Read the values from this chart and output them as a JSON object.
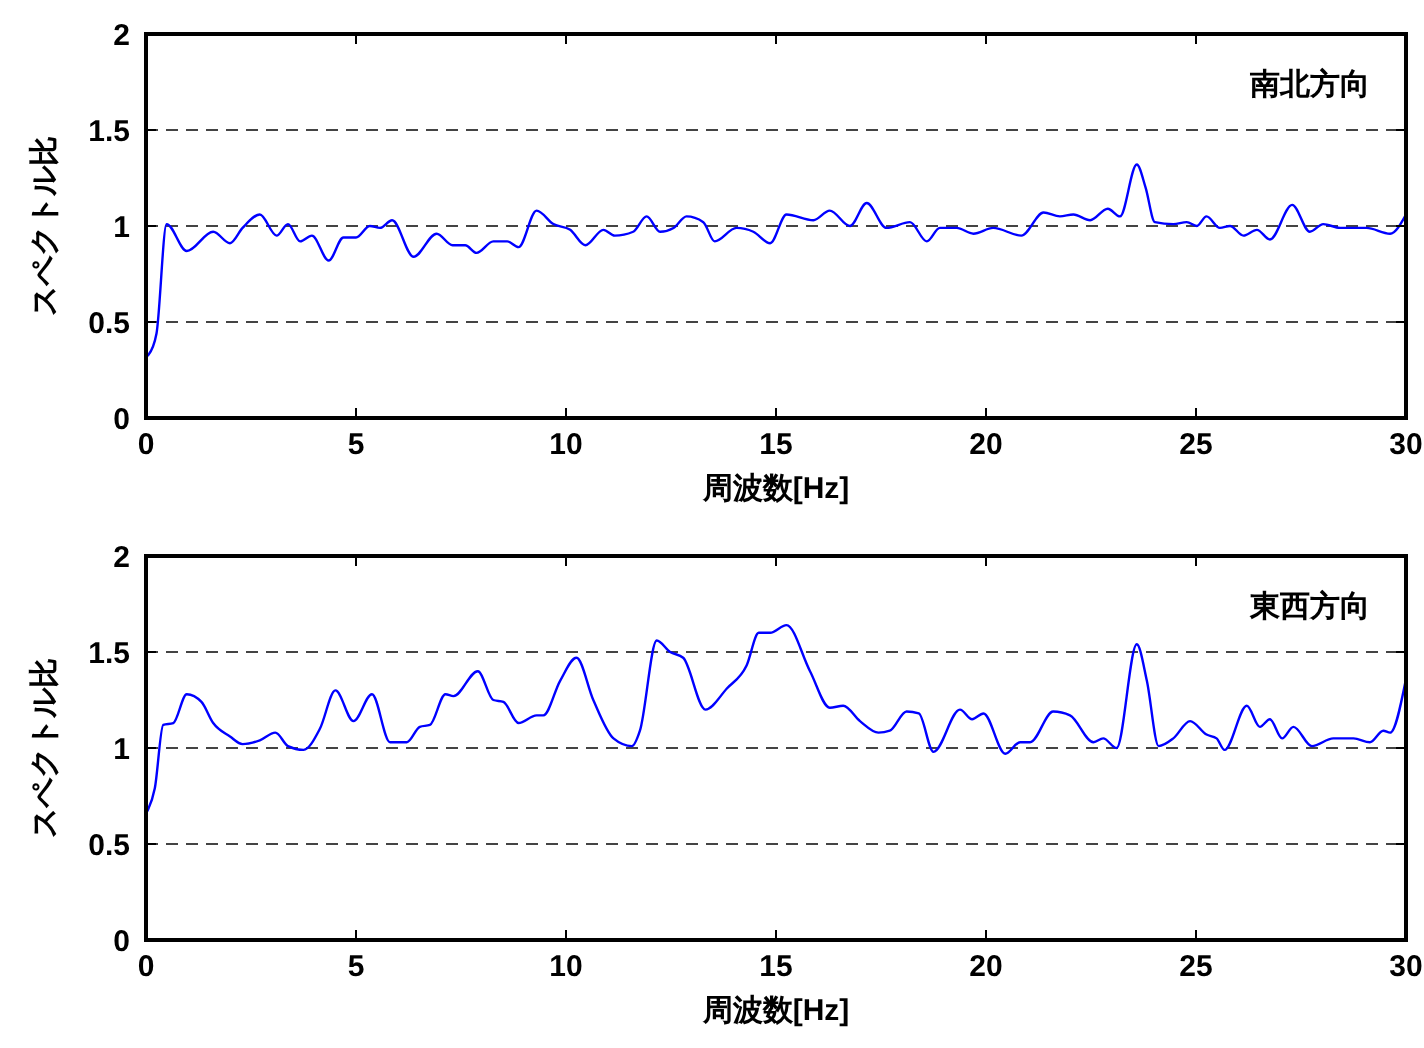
{
  "chart_data": [
    {
      "type": "line",
      "title": "南北方向",
      "xlabel": "周波数[Hz]",
      "ylabel": "スペクトル比",
      "xlim": [
        0,
        30
      ],
      "ylim": [
        0,
        2
      ],
      "xticks": [
        0,
        5,
        10,
        15,
        20,
        25,
        30
      ],
      "yticks": [
        0,
        0.5,
        1,
        1.5,
        2
      ],
      "grid": "y",
      "series": [
        {
          "color": "#0000ff",
          "x": [
            0,
            0.06,
            0.25,
            0.49,
            0.97,
            1.6,
            2.0,
            2.3,
            2.71,
            3.11,
            3.38,
            3.67,
            3.95,
            4.35,
            4.7,
            5.0,
            5.33,
            5.57,
            5.86,
            6.37,
            6.92,
            7.3,
            7.6,
            7.87,
            8.27,
            8.6,
            8.87,
            9.3,
            9.7,
            10.1,
            10.46,
            10.89,
            11.16,
            11.6,
            11.92,
            12.24,
            12.56,
            12.87,
            13.27,
            13.54,
            14.06,
            14.46,
            14.86,
            15.25,
            15.89,
            16.28,
            16.76,
            17.16,
            17.63,
            18.19,
            18.59,
            18.9,
            19.3,
            19.7,
            20.17,
            20.84,
            21.37,
            21.76,
            22.08,
            22.48,
            22.9,
            23.19,
            23.59,
            23.8,
            24.02,
            24.46,
            24.78,
            25.02,
            25.25,
            25.57,
            25.81,
            26.13,
            26.45,
            26.76,
            27.29,
            27.71,
            28.03,
            28.43,
            29.06,
            29.62,
            30
          ],
          "values": [
            0.32,
            0.33,
            0.44,
            1.01,
            0.87,
            0.97,
            0.91,
            0.99,
            1.06,
            0.95,
            1.01,
            0.92,
            0.95,
            0.82,
            0.94,
            0.94,
            1.0,
            0.99,
            1.03,
            0.84,
            0.96,
            0.9,
            0.9,
            0.86,
            0.92,
            0.92,
            0.89,
            1.08,
            1.01,
            0.98,
            0.9,
            0.98,
            0.95,
            0.97,
            1.05,
            0.97,
            0.99,
            1.05,
            1.02,
            0.92,
            0.99,
            0.97,
            0.91,
            1.06,
            1.03,
            1.08,
            1.0,
            1.12,
            0.99,
            1.02,
            0.92,
            0.99,
            0.99,
            0.96,
            0.99,
            0.95,
            1.07,
            1.05,
            1.06,
            1.03,
            1.09,
            1.05,
            1.32,
            1.2,
            1.02,
            1.01,
            1.02,
            1.0,
            1.05,
            0.99,
            1.0,
            0.95,
            0.98,
            0.93,
            1.11,
            0.97,
            1.01,
            0.99,
            0.99,
            0.96,
            1.06
          ]
        }
      ]
    },
    {
      "type": "line",
      "title": "東西方向",
      "xlabel": "周波数[Hz]",
      "ylabel": "スペクトル比",
      "xlim": [
        0,
        30
      ],
      "ylim": [
        0,
        2
      ],
      "xticks": [
        0,
        5,
        10,
        15,
        20,
        25,
        30
      ],
      "yticks": [
        0,
        0.5,
        1,
        1.5,
        2
      ],
      "grid": "y",
      "series": [
        {
          "color": "#0000ff",
          "x": [
            0,
            0.05,
            0.21,
            0.41,
            0.65,
            0.97,
            1.32,
            1.6,
            2.0,
            2.3,
            2.71,
            3.08,
            3.38,
            3.75,
            4.14,
            4.51,
            4.94,
            5.38,
            5.81,
            6.21,
            6.52,
            6.76,
            7.13,
            7.32,
            7.9,
            8.27,
            8.51,
            8.87,
            9.3,
            9.46,
            9.86,
            10.25,
            10.65,
            11.13,
            11.57,
            11.76,
            12.16,
            12.48,
            12.79,
            13.32,
            13.83,
            14.3,
            14.59,
            14.86,
            15.25,
            15.81,
            16.28,
            16.6,
            17.0,
            17.44,
            17.71,
            18.11,
            18.4,
            18.75,
            19.38,
            19.67,
            19.94,
            20.46,
            20.81,
            21.05,
            21.6,
            22.0,
            22.56,
            22.79,
            23.11,
            23.59,
            23.83,
            24.11,
            24.46,
            24.86,
            25.25,
            25.49,
            25.68,
            26.21,
            26.52,
            26.76,
            27.05,
            27.32,
            27.76,
            28.27,
            28.75,
            29.14,
            29.46,
            29.62,
            30
          ],
          "values": [
            0.66,
            0.68,
            0.79,
            1.12,
            1.13,
            1.28,
            1.24,
            1.13,
            1.06,
            1.02,
            1.04,
            1.08,
            1.01,
            0.99,
            1.1,
            1.3,
            1.14,
            1.28,
            1.03,
            1.03,
            1.11,
            1.12,
            1.28,
            1.27,
            1.4,
            1.25,
            1.24,
            1.13,
            1.17,
            1.17,
            1.35,
            1.47,
            1.25,
            1.05,
            1.01,
            1.09,
            1.56,
            1.5,
            1.47,
            1.2,
            1.31,
            1.43,
            1.6,
            1.6,
            1.64,
            1.4,
            1.21,
            1.22,
            1.14,
            1.08,
            1.09,
            1.19,
            1.18,
            0.98,
            1.2,
            1.15,
            1.18,
            0.97,
            1.03,
            1.03,
            1.19,
            1.17,
            1.03,
            1.05,
            1.0,
            1.54,
            1.35,
            1.01,
            1.05,
            1.14,
            1.07,
            1.05,
            0.99,
            1.22,
            1.11,
            1.15,
            1.05,
            1.11,
            1.01,
            1.05,
            1.05,
            1.03,
            1.09,
            1.08,
            1.36
          ]
        }
      ]
    }
  ]
}
